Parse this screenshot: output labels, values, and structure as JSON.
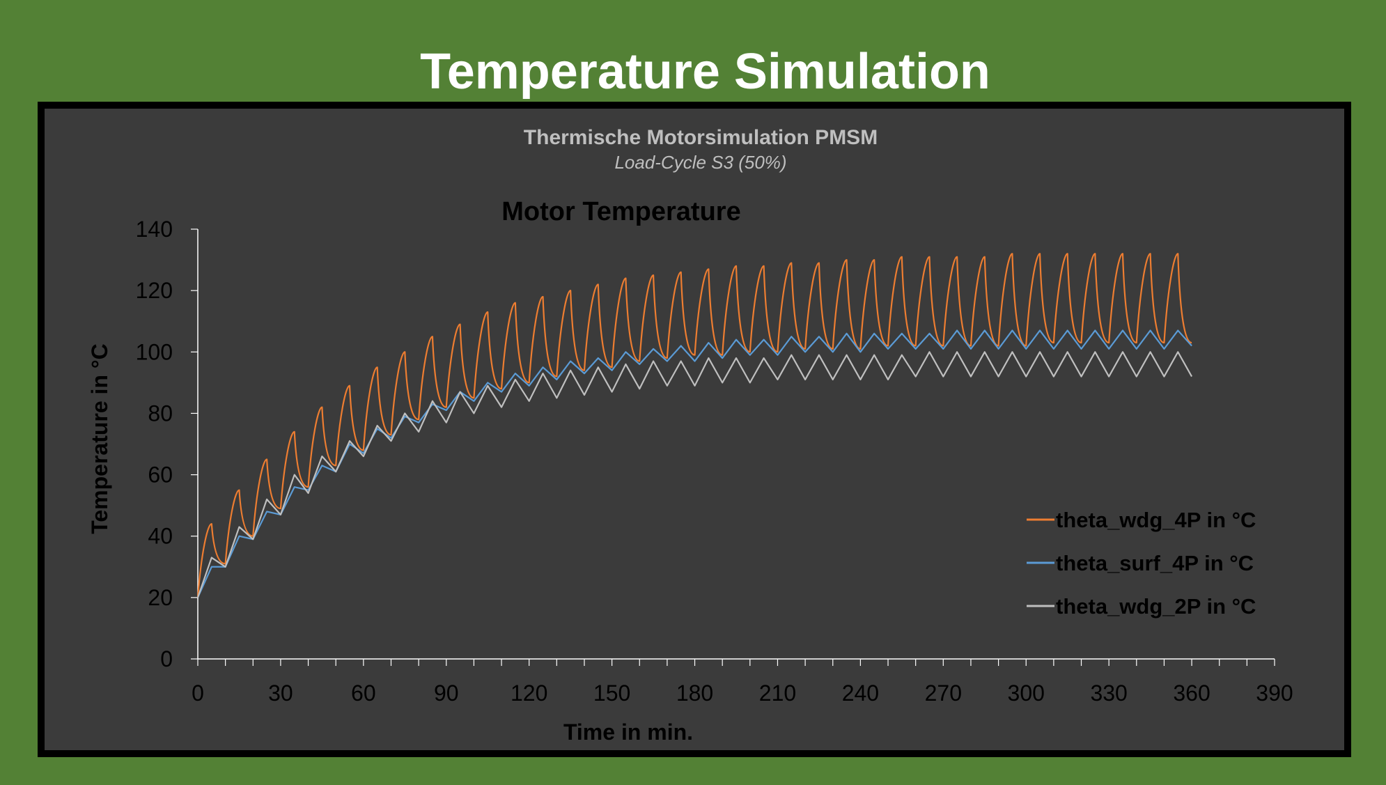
{
  "slide": {
    "title": "Temperature Simulation"
  },
  "colors": {
    "background": "#538135",
    "plot_background": "#3b3b3b",
    "frame": "#000000",
    "axis": "#ffffff",
    "series_wdg_4p": "#ed7d31",
    "series_surf_4p": "#5b9bd5",
    "series_wdg_2p": "#bfbfbf"
  },
  "chart_data": {
    "type": "line",
    "heading": "Thermische Motorsimulation PMSM",
    "subheading": "Load-Cycle S3 (50%)",
    "title": "Motor Temperature",
    "xlabel": "Time in min.",
    "ylabel": "Temperature in °C",
    "xlim": [
      0,
      390
    ],
    "ylim": [
      0,
      140
    ],
    "xticks": [
      0,
      30,
      60,
      90,
      120,
      150,
      180,
      210,
      240,
      270,
      300,
      330,
      360,
      390
    ],
    "yticks": [
      0,
      20,
      40,
      60,
      80,
      100,
      120,
      140
    ],
    "grid": false,
    "legend_position": "right",
    "load_cycle_period_min": 10,
    "series": [
      {
        "name": "theta_wdg_4P in °C",
        "color": "#ed7d31",
        "peaks": [
          44,
          55,
          65,
          74,
          82,
          89,
          95,
          100,
          105,
          109,
          113,
          116,
          118,
          120,
          122,
          124,
          125,
          126,
          127,
          128,
          128,
          129,
          129,
          130,
          130,
          131,
          131,
          131,
          131,
          132,
          132,
          132,
          132,
          132,
          132,
          132
        ],
        "troughs": [
          31,
          40,
          49,
          56,
          63,
          68,
          73,
          78,
          82,
          85,
          88,
          90,
          92,
          94,
          95,
          97,
          98,
          99,
          99,
          100,
          100,
          101,
          101,
          101,
          102,
          102,
          102,
          102,
          102,
          102,
          103,
          103,
          103,
          103,
          103,
          103
        ]
      },
      {
        "name": "theta_surf_4P in °C",
        "color": "#5b9bd5",
        "peaks": [
          30,
          40,
          48,
          56,
          63,
          70,
          75,
          79,
          83,
          87,
          90,
          93,
          95,
          97,
          98,
          100,
          101,
          102,
          103,
          104,
          104,
          105,
          105,
          106,
          106,
          106,
          106,
          107,
          107,
          107,
          107,
          107,
          107,
          107,
          107,
          107
        ],
        "troughs": [
          30,
          39,
          47,
          55,
          61,
          67,
          72,
          77,
          81,
          84,
          87,
          89,
          91,
          93,
          94,
          96,
          97,
          97,
          98,
          99,
          99,
          100,
          100,
          100,
          101,
          101,
          101,
          101,
          101,
          101,
          101,
          101,
          101,
          101,
          101,
          102
        ]
      },
      {
        "name": "theta_wdg_2P in °C",
        "color": "#bfbfbf",
        "peaks": [
          33,
          43,
          52,
          60,
          66,
          71,
          76,
          80,
          84,
          87,
          89,
          91,
          93,
          94,
          95,
          96,
          97,
          97,
          98,
          98,
          98,
          99,
          99,
          99,
          99,
          99,
          100,
          100,
          100,
          100,
          100,
          100,
          100,
          100,
          100,
          100
        ],
        "troughs": [
          30,
          39,
          47,
          54,
          61,
          66,
          71,
          74,
          77,
          80,
          82,
          84,
          85,
          86,
          87,
          88,
          89,
          89,
          90,
          90,
          91,
          91,
          91,
          91,
          91,
          92,
          92,
          92,
          92,
          92,
          92,
          92,
          92,
          92,
          92,
          92
        ]
      }
    ]
  }
}
